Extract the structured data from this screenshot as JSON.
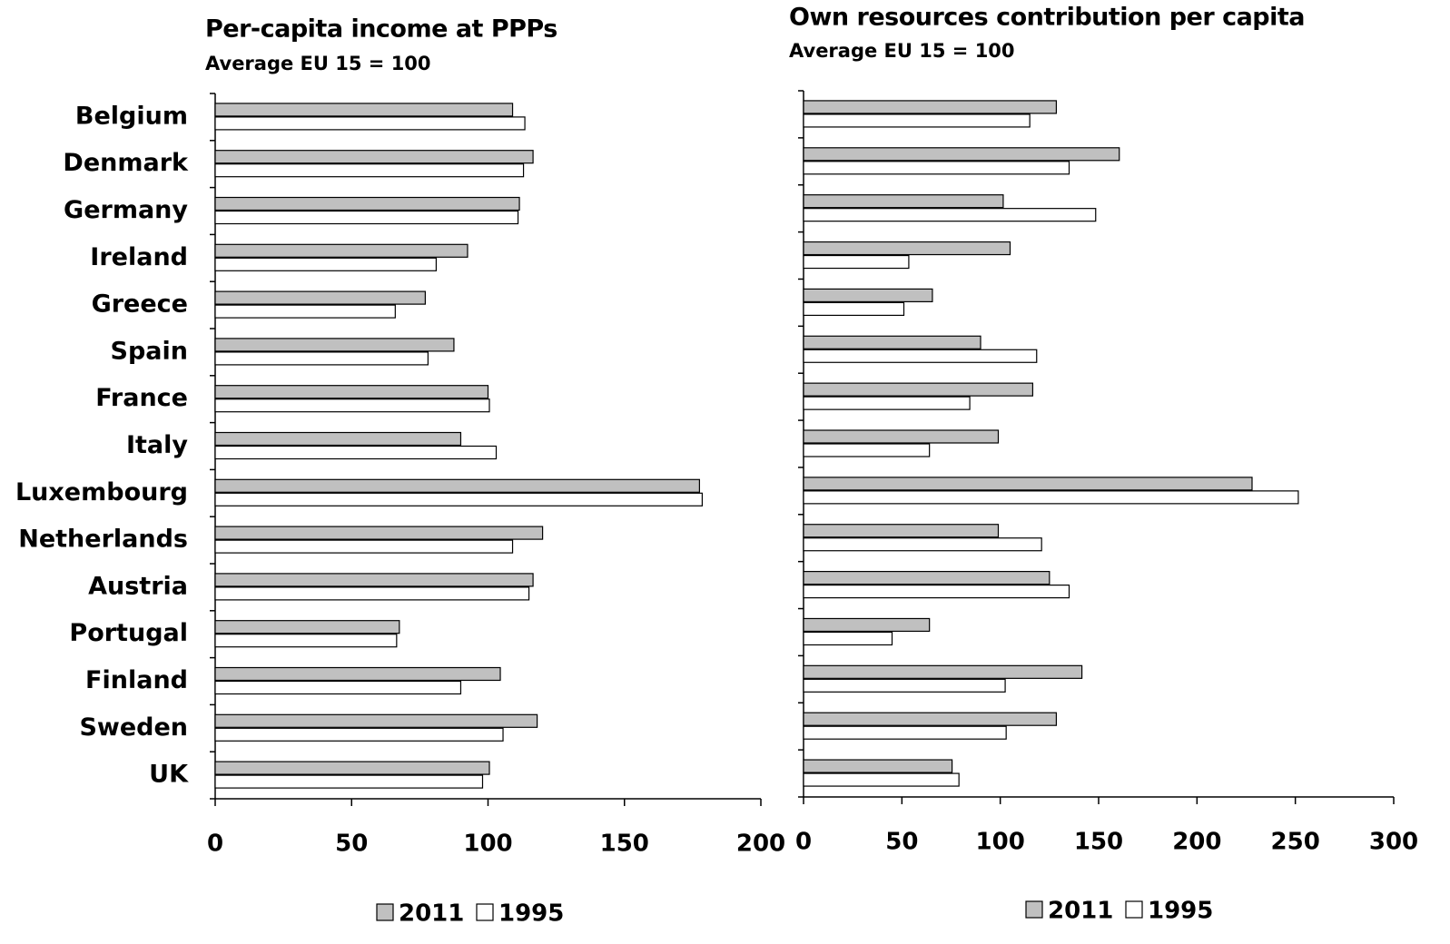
{
  "chart_data": [
    {
      "type": "hbar",
      "title": "Per-capita income at PPPs",
      "subtitle": "Average EU 15 = 100",
      "categories": [
        "Belgium",
        "Denmark",
        "Germany",
        "Ireland",
        "Greece",
        "Spain",
        "France",
        "Italy",
        "Luxembourg",
        "Netherlands",
        "Austria",
        "Portugal",
        "Finland",
        "Sweden",
        "UK"
      ],
      "series": [
        {
          "name": "2011",
          "color": "#c0c0c0",
          "values": [
            109,
            116.5,
            111.5,
            92.5,
            77,
            87.5,
            100,
            90,
            177.5,
            120,
            116.5,
            67.5,
            104.5,
            118,
            100.5
          ]
        },
        {
          "name": "1995",
          "color": "#ffffff",
          "values": [
            113.5,
            113,
            111,
            81,
            66,
            78,
            100.5,
            103,
            178.5,
            109,
            115,
            66.5,
            90,
            105.5,
            98
          ]
        }
      ],
      "xlim": [
        0,
        200
      ],
      "xticks": [
        0,
        50,
        100,
        150,
        200
      ],
      "legend": "bottom"
    },
    {
      "type": "hbar",
      "title": "Own resources contribution per capita",
      "subtitle": "Average EU 15 = 100",
      "series": [
        {
          "name": "2011",
          "color": "#c0c0c0",
          "values": [
            128.5,
            160.5,
            101.5,
            105,
            65.5,
            90,
            116.5,
            99,
            228,
            99,
            125,
            64,
            141.5,
            128.5,
            75.5
          ]
        },
        {
          "name": "1995",
          "color": "#ffffff",
          "values": [
            115,
            135,
            148.5,
            53.5,
            51,
            118.5,
            84.5,
            64,
            251.5,
            121,
            135,
            45,
            102.5,
            103,
            79
          ]
        }
      ],
      "xlim": [
        0,
        300
      ],
      "xticks": [
        0,
        50,
        100,
        150,
        200,
        250,
        300
      ],
      "legend": "bottom"
    }
  ]
}
